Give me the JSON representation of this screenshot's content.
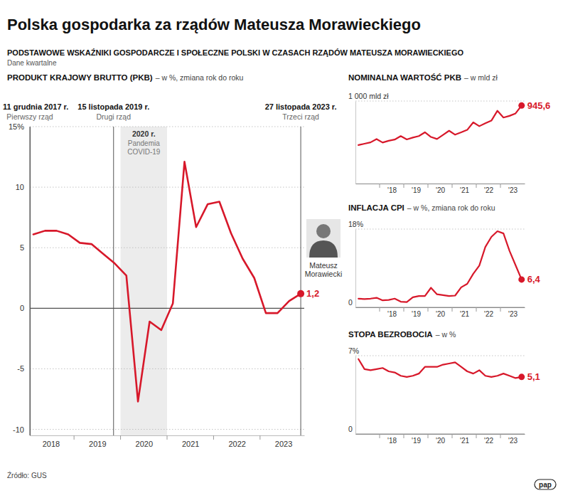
{
  "header": {
    "title": "Polska gospodarka za rządów Mateusza Morawieckiego",
    "subtitle": "PODSTAWOWE WSKAŹNIKI GOSPODARCZE I SPOŁECZNE POLSKI W CZASACH RZĄDÓW MATEUSZA MORAWIECKIEGO",
    "note": "Dane kwartalne"
  },
  "source": "Źródło: GUS",
  "logo": "pap",
  "chart_data": [
    {
      "type": "line",
      "title": "PRODUKT KRAJOWY BRUTTO (PKB)",
      "subtitle": "– w %, zmiana rok do roku",
      "categories": [
        null,
        "2018",
        null,
        null,
        null,
        "2019",
        null,
        null,
        null,
        "2020",
        null,
        null,
        null,
        "2021",
        null,
        null,
        null,
        "2022",
        null,
        null,
        null,
        "2023",
        null,
        null
      ],
      "values": [
        6.1,
        6.4,
        6.4,
        6.1,
        5.4,
        5.3,
        4.5,
        3.7,
        2.7,
        -7.7,
        -1.1,
        -1.8,
        0.4,
        12.1,
        6.7,
        8.6,
        8.8,
        6.2,
        4.1,
        2.5,
        -0.4,
        -0.4,
        0.6,
        1.2
      ],
      "value_labels": [
        null,
        null,
        null,
        null,
        null,
        null,
        null,
        null,
        null,
        null,
        null,
        null,
        null,
        null,
        null,
        null,
        null,
        null,
        null,
        null,
        null,
        null,
        null,
        "1,2"
      ],
      "color": "#d7182a",
      "ylim": [
        -10.5,
        15
      ],
      "yticks": [
        {
          "value": 15,
          "label": "15%"
        },
        10,
        5,
        0,
        -5,
        -10
      ],
      "grid": true,
      "annotations": [
        {
          "x": -0.3,
          "label": "11 grudnia 2017 r.",
          "text": "Pierwszy rząd"
        },
        {
          "x": 6.9,
          "label": "15 listopada 2019 r.",
          "text": "Drugi rząd"
        },
        {
          "x": 23,
          "label": "27 listopada 2023 r.",
          "text": "Trzeci rząd"
        }
      ],
      "shaded": {
        "x_range": [
          7.5,
          11.5
        ],
        "label": "2020 r.",
        "text": "Pandemia COVID-19"
      },
      "portrait_caption": "Mateusz Morawiecki"
    },
    {
      "type": "line",
      "title": "NOMINALNA WARTOŚĆ PKB",
      "subtitle": "– w mld zł",
      "categories": [
        null,
        null,
        null,
        null,
        null,
        "'18",
        null,
        null,
        null,
        "'19",
        null,
        null,
        null,
        "'20",
        null,
        null,
        null,
        "'21",
        null,
        null,
        null,
        "'22",
        null,
        null,
        null,
        "'23",
        null,
        null
      ],
      "values": [
        466,
        483,
        499,
        539,
        497,
        518,
        533,
        575,
        535,
        557,
        575,
        621,
        564,
        540,
        590,
        640,
        592,
        620,
        650,
        741,
        695,
        730,
        762,
        882,
        800,
        820,
        850,
        945.6
      ],
      "value_labels": [
        null,
        null,
        null,
        null,
        null,
        null,
        null,
        null,
        null,
        null,
        null,
        null,
        null,
        null,
        null,
        null,
        null,
        null,
        null,
        null,
        null,
        null,
        null,
        null,
        null,
        null,
        null,
        "945,6"
      ],
      "color": "#d7182a",
      "ylim": [
        0,
        1000
      ],
      "yticks": [
        {
          "value": 1000,
          "label": "1 000 mld zł"
        }
      ],
      "grid": true
    },
    {
      "type": "line",
      "title": "INFLACJA CPI",
      "subtitle": "– w %, zmiana rok do roku",
      "categories": [
        null,
        null,
        null,
        null,
        null,
        "'18",
        null,
        null,
        null,
        "'19",
        null,
        null,
        null,
        "'20",
        null,
        null,
        null,
        "'21",
        null,
        null,
        null,
        "'22",
        null,
        null,
        null,
        "'23",
        null,
        null
      ],
      "values": [
        2.0,
        1.9,
        2.0,
        2.2,
        1.6,
        1.7,
        2.0,
        1.3,
        1.2,
        2.3,
        2.6,
        2.6,
        4.5,
        3.0,
        2.8,
        2.6,
        2.7,
        4.6,
        5.4,
        7.7,
        9.6,
        13.9,
        16.2,
        17.5,
        17.0,
        13.0,
        9.7,
        6.4
      ],
      "value_labels": [
        null,
        null,
        null,
        null,
        null,
        null,
        null,
        null,
        null,
        null,
        null,
        null,
        null,
        null,
        null,
        null,
        null,
        null,
        null,
        null,
        null,
        null,
        null,
        null,
        null,
        null,
        null,
        "6,4"
      ],
      "color": "#d7182a",
      "ylim": [
        0,
        18
      ],
      "yticks": [
        0,
        {
          "value": 18,
          "label": "18%"
        }
      ],
      "grid": true
    },
    {
      "type": "line",
      "title": "STOPA BEZROBOCIA",
      "subtitle": "– w %",
      "categories": [
        null,
        null,
        null,
        null,
        null,
        "'18",
        null,
        null,
        null,
        "'19",
        null,
        null,
        null,
        "'20",
        null,
        null,
        null,
        "'21",
        null,
        null,
        null,
        "'22",
        null,
        null,
        null,
        "'23",
        null,
        null
      ],
      "values": [
        6.7,
        5.8,
        5.7,
        5.8,
        5.9,
        5.6,
        5.5,
        5.2,
        5.1,
        5.2,
        5.4,
        6.0,
        6.0,
        6.0,
        6.2,
        6.3,
        6.4,
        6.0,
        5.6,
        5.4,
        5.7,
        5.2,
        5.1,
        5.2,
        5.4,
        5.2,
        5.0,
        5.1
      ],
      "value_labels": [
        null,
        null,
        null,
        null,
        null,
        null,
        null,
        null,
        null,
        null,
        null,
        null,
        null,
        null,
        null,
        null,
        null,
        null,
        null,
        null,
        null,
        null,
        null,
        null,
        null,
        null,
        null,
        "5,1"
      ],
      "color": "#d7182a",
      "ylim": [
        0,
        7
      ],
      "yticks": [
        0,
        {
          "value": 7,
          "label": "7%"
        }
      ],
      "grid": true
    }
  ]
}
